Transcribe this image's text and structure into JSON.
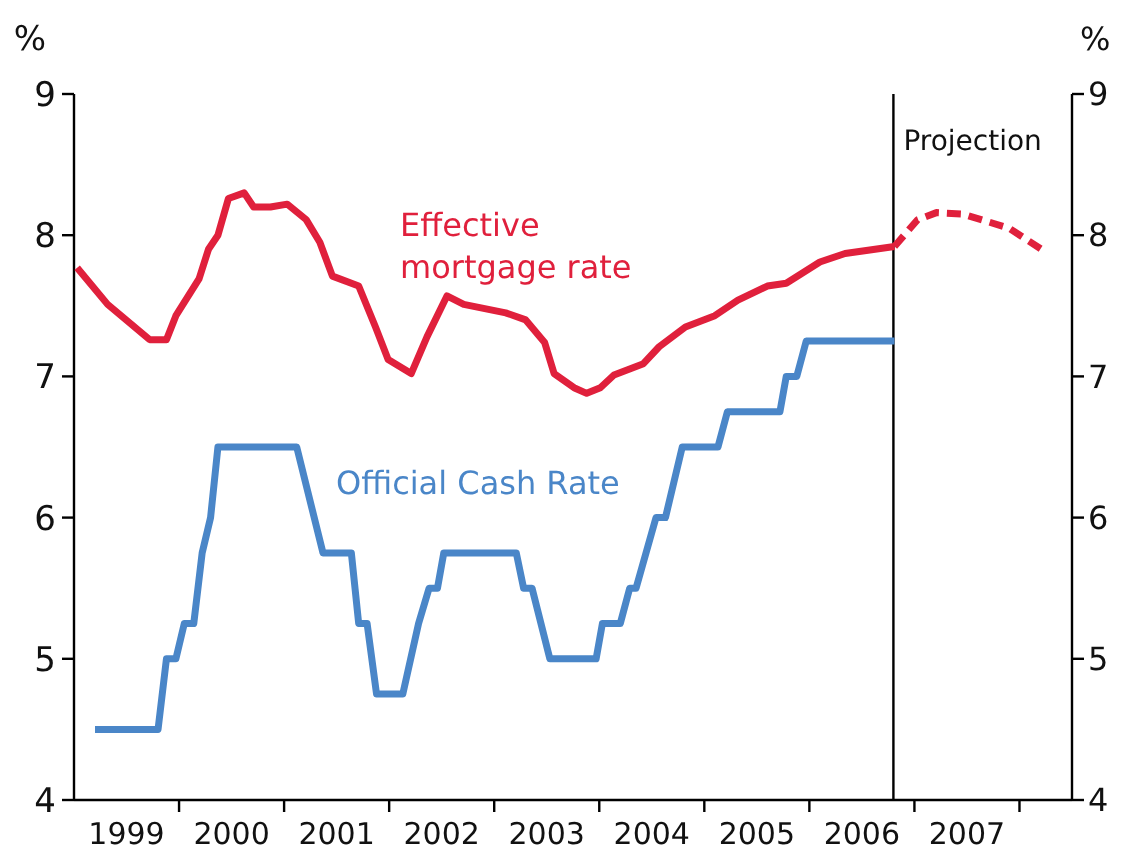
{
  "chart_data": {
    "type": "line",
    "ylabel": "%",
    "y2label": "%",
    "xlim": [
      1999,
      2008.5
    ],
    "ylim": [
      4,
      9
    ],
    "y2lim": [
      4,
      9
    ],
    "xticks": [
      {
        "value": 1999.5,
        "label": "1999"
      },
      {
        "value": 2000,
        "label": null
      },
      {
        "value": 2000.5,
        "label": "2000"
      },
      {
        "value": 2001,
        "label": null
      },
      {
        "value": 2001.5,
        "label": "2001"
      },
      {
        "value": 2002,
        "label": null
      },
      {
        "value": 2002.5,
        "label": "2002"
      },
      {
        "value": 2003,
        "label": null
      },
      {
        "value": 2003.5,
        "label": "2003"
      },
      {
        "value": 2004,
        "label": null
      },
      {
        "value": 2004.5,
        "label": "2004"
      },
      {
        "value": 2005,
        "label": null
      },
      {
        "value": 2005.5,
        "label": "2005"
      },
      {
        "value": 2006,
        "label": null
      },
      {
        "value": 2006.5,
        "label": "2006"
      },
      {
        "value": 2007,
        "label": null
      },
      {
        "value": 2007.5,
        "label": "2007"
      },
      {
        "value": 2008,
        "label": null
      }
    ],
    "yticks": [
      4,
      5,
      6,
      7,
      8,
      9
    ],
    "y2ticks": [
      4,
      5,
      6,
      7,
      8,
      9
    ],
    "grid": false,
    "marker": "none",
    "series": [
      {
        "name": "Effective mortgage rate",
        "color": "#e0203c",
        "line_style": "solid",
        "x": [
          1999.03,
          1999.32,
          1999.72,
          1999.88,
          1999.97,
          2000.19,
          2000.28,
          2000.37,
          2000.47,
          2000.62,
          2000.71,
          2000.87,
          2001.03,
          2001.21,
          2001.34,
          2001.46,
          2001.71,
          2001.87,
          2001.99,
          2002.21,
          2002.36,
          2002.55,
          2002.71,
          2003.11,
          2003.3,
          2003.48,
          2003.57,
          2003.76,
          2003.88,
          2004.01,
          2004.14,
          2004.42,
          2004.57,
          2004.82,
          2005.1,
          2005.32,
          2005.6,
          2005.78,
          2006.1,
          2006.34,
          2006.81
        ],
        "values": [
          7.77,
          7.51,
          7.26,
          7.26,
          7.43,
          7.69,
          7.9,
          8.0,
          8.26,
          8.3,
          8.2,
          8.2,
          8.22,
          8.11,
          7.95,
          7.71,
          7.64,
          7.35,
          7.12,
          7.02,
          7.28,
          7.57,
          7.51,
          7.45,
          7.4,
          7.24,
          7.02,
          6.92,
          6.88,
          6.92,
          7.01,
          7.09,
          7.21,
          7.35,
          7.43,
          7.54,
          7.64,
          7.66,
          7.81,
          7.87,
          7.92
        ]
      },
      {
        "color": "#e0203c",
        "line_style": "dashed",
        "x": [
          2006.81,
          2007.03,
          2007.21,
          2007.46,
          2007.9,
          2008.21
        ],
        "values": [
          7.92,
          8.11,
          8.16,
          8.15,
          8.05,
          7.9
        ]
      },
      {
        "name": "Official Cash Rate",
        "color": "#4a86c8",
        "line_style": "solid",
        "x": [
          1999.2,
          1999.8,
          1999.88,
          1999.97,
          2000.05,
          2000.14,
          2000.22,
          2000.3,
          2000.37,
          2001.12,
          2001.37,
          2001.64,
          2001.71,
          2001.79,
          2001.88,
          2002.13,
          2002.28,
          2002.38,
          2002.46,
          2002.52,
          2003.21,
          2003.28,
          2003.36,
          2003.53,
          2003.97,
          2004.03,
          2004.2,
          2004.29,
          2004.35,
          2004.54,
          2004.63,
          2004.79,
          2005.13,
          2005.22,
          2005.72,
          2005.78,
          2005.88,
          2005.97,
          2006.81
        ],
        "values": [
          4.5,
          4.5,
          5.0,
          5.0,
          5.25,
          5.25,
          5.75,
          6.0,
          6.5,
          6.5,
          5.75,
          5.75,
          5.25,
          5.25,
          4.75,
          4.75,
          5.25,
          5.5,
          5.5,
          5.75,
          5.75,
          5.5,
          5.5,
          5.0,
          5.0,
          5.25,
          5.25,
          5.5,
          5.5,
          6.0,
          6.0,
          6.5,
          6.5,
          6.75,
          6.75,
          7.0,
          7.0,
          7.25,
          7.25
        ]
      }
    ],
    "ref_lines": [
      {
        "axis": "x",
        "value": 2006.8,
        "label": "Projection",
        "color": "#000000"
      }
    ]
  }
}
